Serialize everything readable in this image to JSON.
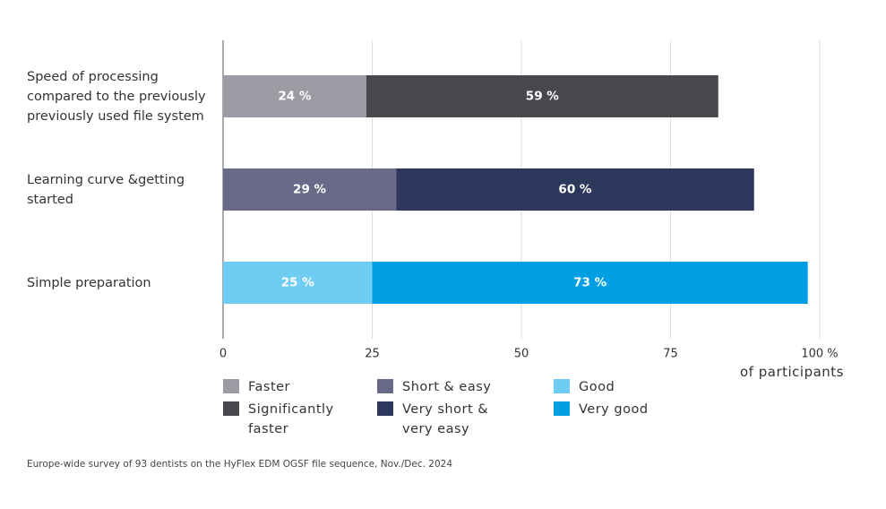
{
  "chart_data": {
    "type": "bar",
    "orientation": "horizontal",
    "stacked": true,
    "categories": [
      "Speed of processing compared to the previously previously used file system",
      "Learning curve &getting started",
      "Simple preparation"
    ],
    "series": [
      {
        "name": "Faster",
        "color": "#9b9ca3",
        "values": [
          24,
          null,
          null
        ],
        "value_labels": [
          "24 %",
          null,
          null
        ]
      },
      {
        "name": "Significantly faster",
        "color": "#48484f",
        "values": [
          59,
          null,
          null
        ],
        "value_labels": [
          "59 %",
          null,
          null
        ]
      },
      {
        "name": "Short & easy",
        "color": "#696a88",
        "values": [
          null,
          29,
          null
        ],
        "value_labels": [
          null,
          "29 %",
          null
        ]
      },
      {
        "name": "Very short & very easy",
        "color": "#2e375c",
        "values": [
          null,
          60,
          null
        ],
        "value_labels": [
          null,
          "60 %",
          null
        ]
      },
      {
        "name": "Good",
        "color": "#6fcdf3",
        "values": [
          null,
          null,
          25
        ],
        "value_labels": [
          null,
          null,
          "25 %"
        ]
      },
      {
        "name": "Very good",
        "color": "#009ee2",
        "values": [
          null,
          null,
          73
        ],
        "value_labels": [
          null,
          null,
          "73 %"
        ]
      }
    ],
    "xlim": [
      0,
      100
    ],
    "xticks": [
      0,
      25,
      50,
      75,
      {
        "value": 100,
        "label": "100 %"
      }
    ],
    "xlabel": "of participants",
    "grid": true,
    "footnote": "Europe-wide survey of 93 dentists on the HyFlex EDM OGSF file sequence, Nov./Dec. 2024"
  }
}
